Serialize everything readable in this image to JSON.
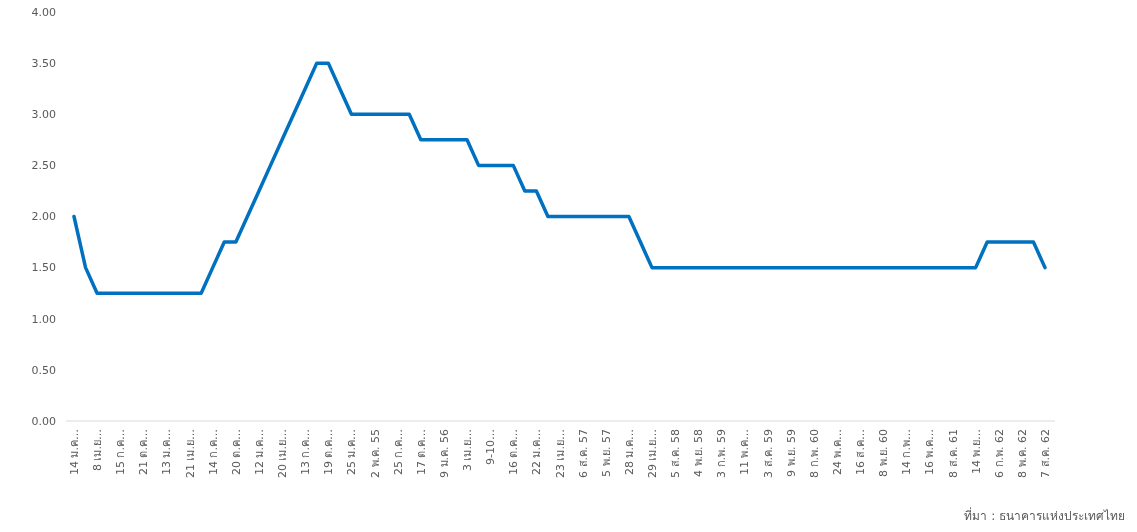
{
  "chart_data": {
    "type": "line",
    "categories": [
      "14 ม.ค…",
      null,
      "8 เม.ย…",
      null,
      "15 ก.ค…",
      null,
      "21 ต.ค…",
      null,
      "13 ม.ค…",
      null,
      "21 เม.ย…",
      null,
      "14 ก.ค…",
      null,
      "20 ต.ค…",
      null,
      "12 ม.ค…",
      null,
      "20 เม.ย…",
      null,
      "13 ก.ค…",
      null,
      "19 ต.ค…",
      null,
      "25 ม.ค…",
      null,
      "2 พ.ค. 55",
      null,
      "25 ก.ค…",
      null,
      "17 ต.ค…",
      null,
      "9 ม.ค. 56",
      null,
      "3 เม.ย…",
      null,
      "9-10…",
      null,
      "16 ต.ค…",
      null,
      "22 ม.ค…",
      null,
      "23 เม.ย…",
      null,
      "6 ส.ค. 57",
      null,
      "5 พ.ย. 57",
      null,
      "28 ม.ค…",
      null,
      "29 เม.ย…",
      null,
      "5 ส.ค. 58",
      null,
      "4 พ.ย. 58",
      null,
      "3 ก.พ. 59",
      null,
      "11 พ.ค…",
      null,
      "3 ส.ค. 59",
      null,
      "9 พ.ย. 59",
      null,
      "8 ก.พ. 60",
      null,
      "24 พ.ค…",
      null,
      "16 ส.ค…",
      null,
      "8 พ.ย. 60",
      null,
      "14 ก.พ…",
      null,
      "16 พ.ค…",
      null,
      "8 ส.ค. 61",
      null,
      "14 พ.ย…",
      null,
      "6 ก.พ. 62",
      null,
      "8 พ.ค. 62",
      null,
      "7 ส.ค. 62"
    ],
    "series": [
      {
        "color": "#0070c0",
        "values": [
          2.0,
          1.5,
          1.25,
          1.25,
          1.25,
          1.25,
          1.25,
          1.25,
          1.25,
          1.25,
          1.25,
          1.25,
          1.5,
          1.75,
          1.75,
          2.0,
          2.25,
          2.5,
          2.75,
          3.0,
          3.25,
          3.5,
          3.5,
          3.25,
          3.0,
          3.0,
          3.0,
          3.0,
          3.0,
          3.0,
          2.75,
          2.75,
          2.75,
          2.75,
          2.75,
          2.5,
          2.5,
          2.5,
          2.5,
          2.25,
          2.25,
          2.0,
          2.0,
          2.0,
          2.0,
          2.0,
          2.0,
          2.0,
          2.0,
          1.75,
          1.5,
          1.5,
          1.5,
          1.5,
          1.5,
          1.5,
          1.5,
          1.5,
          1.5,
          1.5,
          1.5,
          1.5,
          1.5,
          1.5,
          1.5,
          1.5,
          1.5,
          1.5,
          1.5,
          1.5,
          1.5,
          1.5,
          1.5,
          1.5,
          1.5,
          1.5,
          1.5,
          1.5,
          1.5,
          1.75,
          1.75,
          1.75,
          1.75,
          1.75,
          1.5
        ]
      }
    ],
    "ylim": [
      0,
      4
    ],
    "yticks": [
      {
        "value": 0,
        "label": "0.00"
      },
      {
        "value": 0.5,
        "label": "0.50"
      },
      {
        "value": 1,
        "label": "1.00"
      },
      {
        "value": 1.5,
        "label": "1.50"
      },
      {
        "value": 2,
        "label": "2.00"
      },
      {
        "value": 2.5,
        "label": "2.50"
      },
      {
        "value": 3,
        "label": "3.00"
      },
      {
        "value": 3.5,
        "label": "3.50"
      },
      {
        "value": 4,
        "label": "4.00"
      }
    ],
    "grid": false,
    "marker": "none",
    "line_style": "solid",
    "annotations": [
      "ที่มา : ธนาคารแห่งประเทศไทย"
    ]
  }
}
